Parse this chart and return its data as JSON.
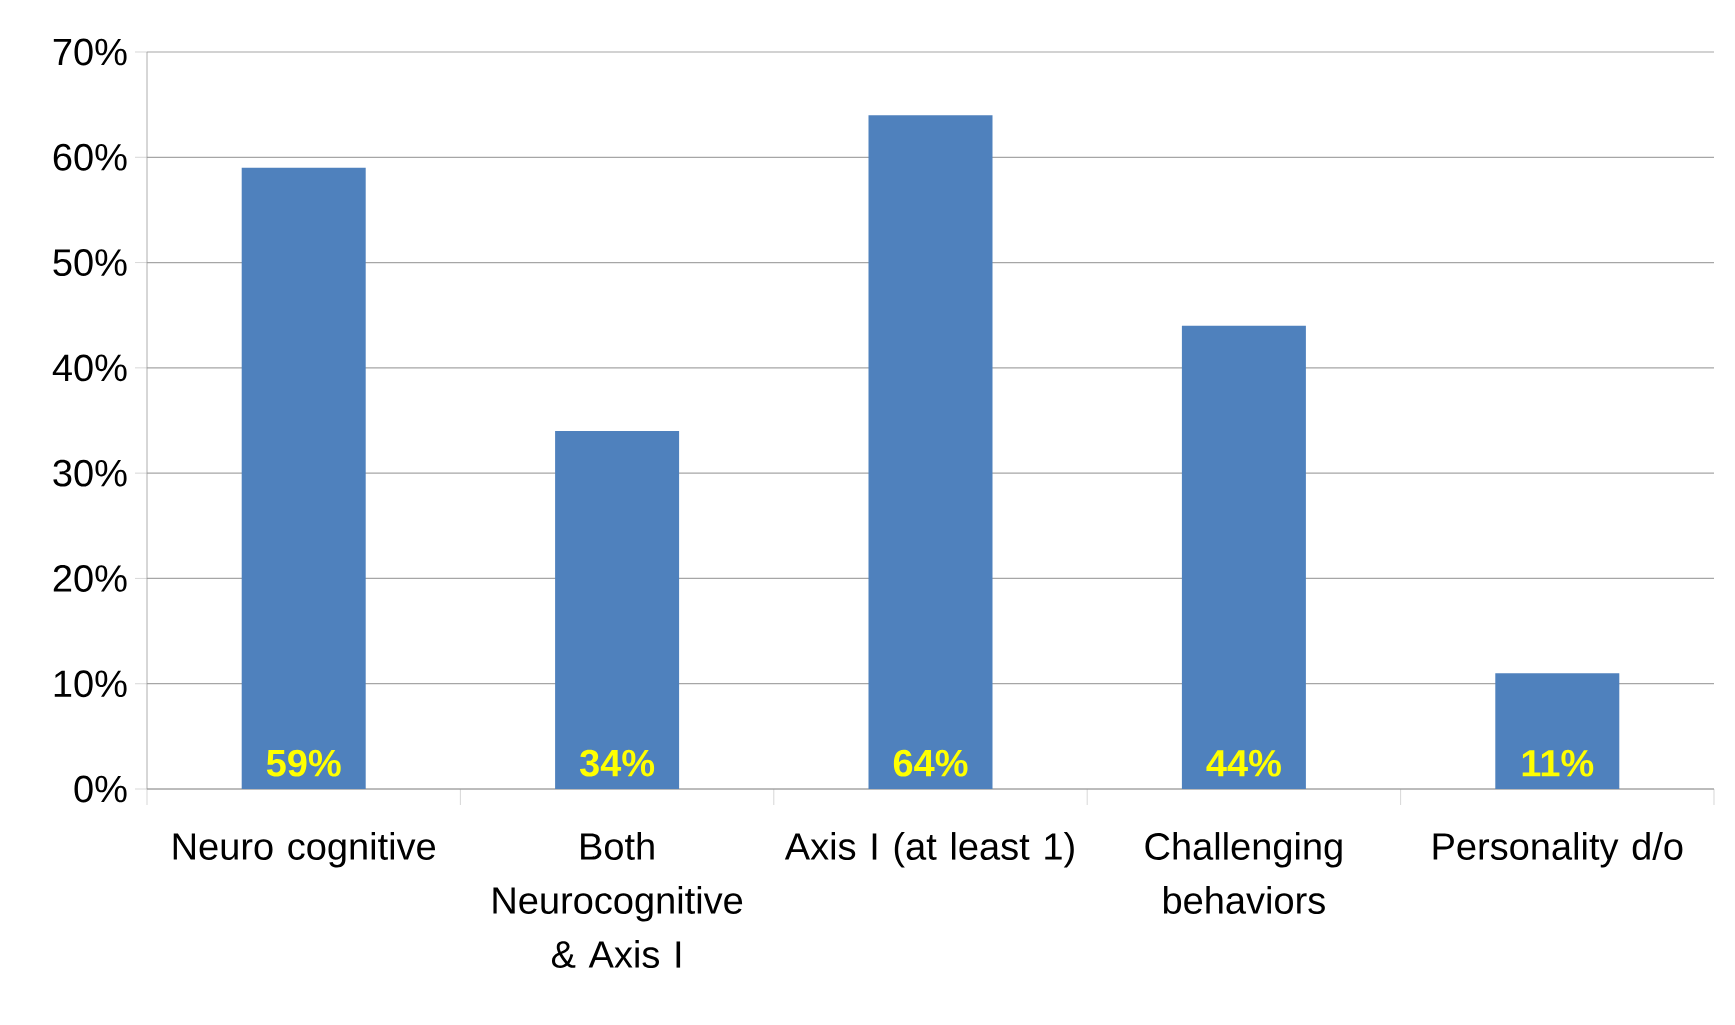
{
  "chart_data": {
    "type": "bar",
    "categories": [
      "Neuro cognitive",
      "Both Neurocognitive & Axis I",
      "Axis I (at least 1)",
      "Challenging behaviors",
      "Personality d/o"
    ],
    "values": [
      59,
      34,
      64,
      44,
      11
    ],
    "value_labels": [
      "59%",
      "34%",
      "64%",
      "44%",
      "11%"
    ],
    "color": "#4f81bd",
    "ylim": [
      0,
      70
    ],
    "yticks": [
      {
        "value": 0,
        "label": "0%"
      },
      {
        "value": 10,
        "label": "10%"
      },
      {
        "value": 20,
        "label": "20%"
      },
      {
        "value": 30,
        "label": "30%"
      },
      {
        "value": 40,
        "label": "40%"
      },
      {
        "value": 50,
        "label": "50%"
      },
      {
        "value": 60,
        "label": "60%"
      },
      {
        "value": 70,
        "label": "70%"
      }
    ],
    "grid": "y"
  }
}
